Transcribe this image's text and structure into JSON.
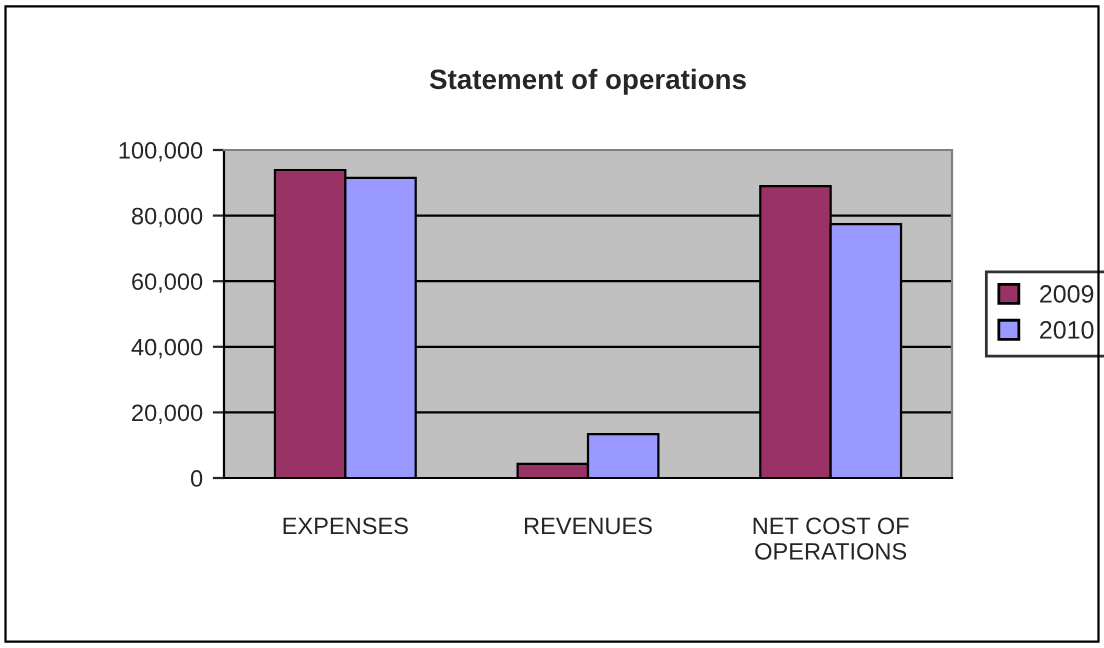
{
  "chart_data": {
    "type": "bar",
    "title": "Statement of operations",
    "categories": [
      "EXPENSES",
      "REVENUES",
      "NET COST OF\nOPERATIONS"
    ],
    "series": [
      {
        "name": "2009",
        "color": "#993366",
        "values": [
          93900,
          4300,
          89000
        ]
      },
      {
        "name": "2010",
        "color": "#9999ff",
        "values": [
          91500,
          13400,
          77400
        ]
      }
    ],
    "ylim": [
      0,
      100000
    ],
    "yticks": [
      {
        "value": 0,
        "label": "0"
      },
      {
        "value": 20000,
        "label": "20,000"
      },
      {
        "value": 40000,
        "label": "40,000"
      },
      {
        "value": 60000,
        "label": "60,000"
      },
      {
        "value": 80000,
        "label": "80,000"
      },
      {
        "value": 100000,
        "label": "100,000"
      }
    ],
    "grid": "y",
    "legend": "right"
  }
}
